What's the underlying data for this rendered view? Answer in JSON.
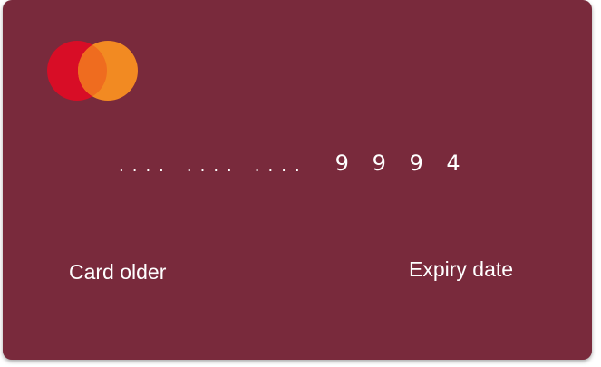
{
  "card": {
    "background_color": "#792a3c",
    "brand_logo": {
      "icon": "mastercard-logo-icon",
      "left_circle_color": "#d80d26",
      "right_circle_color": "#f28a22",
      "overlap_color": "#ef6c1f"
    },
    "number": {
      "mask_groups": [
        "....",
        "....",
        "...."
      ],
      "last_four": "9 9 9 4"
    },
    "holder_label": "Card older",
    "expiry_label": "Expiry date"
  }
}
